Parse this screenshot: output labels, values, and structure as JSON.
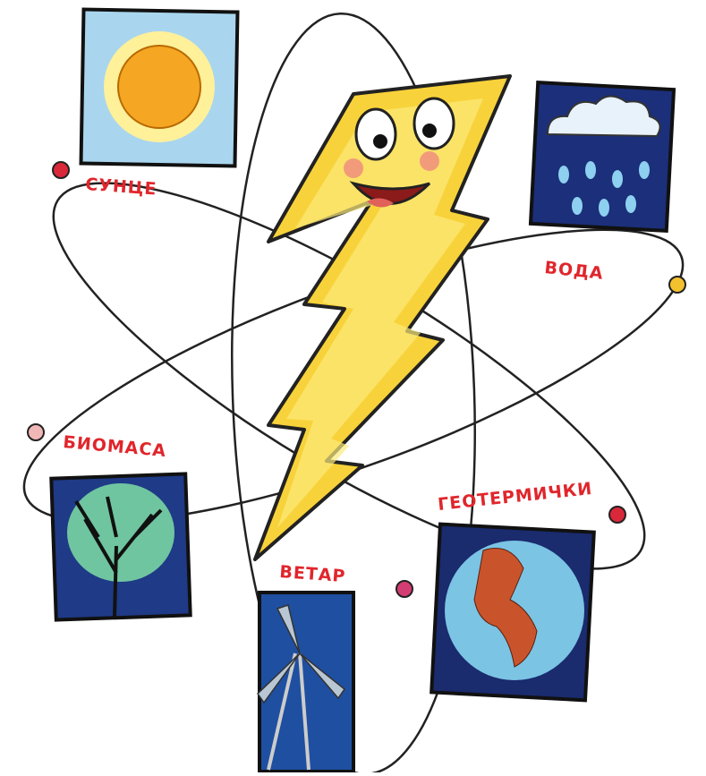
{
  "nodes": [
    {
      "label": "СУНЦЕ"
    },
    {
      "label": "ВОДА"
    },
    {
      "label": "БИОМАСА"
    },
    {
      "label": "ВЕТАР"
    },
    {
      "label": "ГЕОТЕРМИЧКИ"
    }
  ]
}
